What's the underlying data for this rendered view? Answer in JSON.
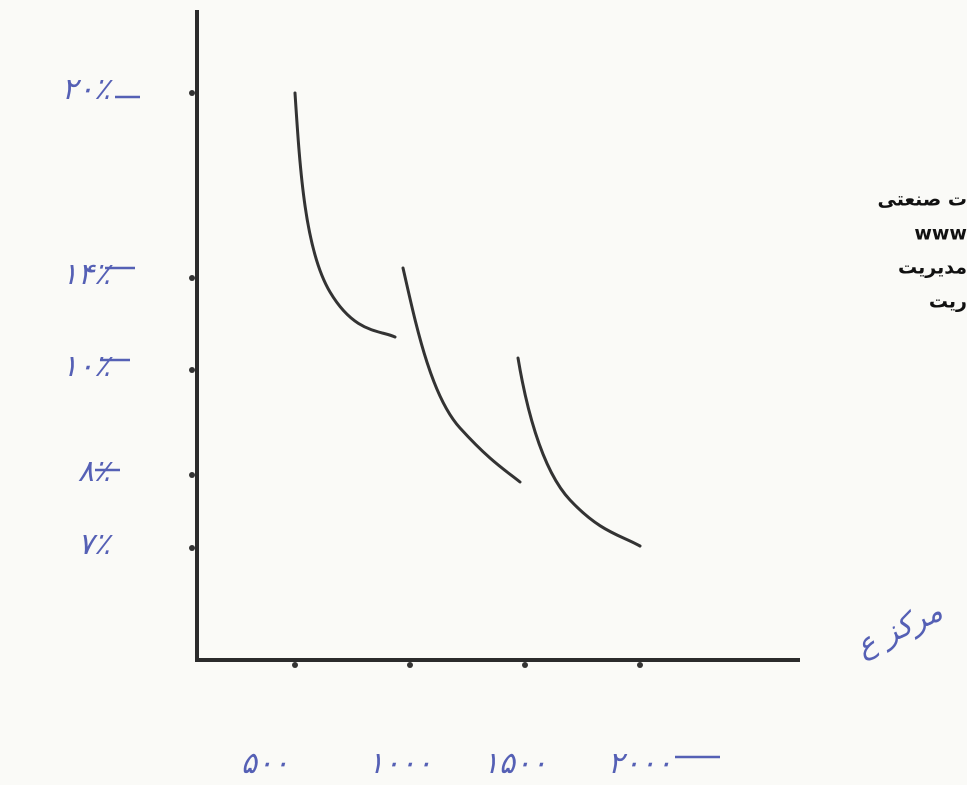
{
  "y_axis": {
    "labels": [
      "۲۰٪",
      "۱۴٪",
      "۱۰٪",
      "۸٪",
      "۷٪"
    ]
  },
  "x_axis": {
    "labels": [
      "۵۰۰",
      "۱۰۰۰",
      "۱۵۰۰",
      "۲۰۰۰"
    ]
  },
  "watermark": {
    "lines": [
      "ت صنعتی",
      "www",
      "مدیریت",
      "ریت"
    ]
  },
  "signature": "مرکز ع"
}
